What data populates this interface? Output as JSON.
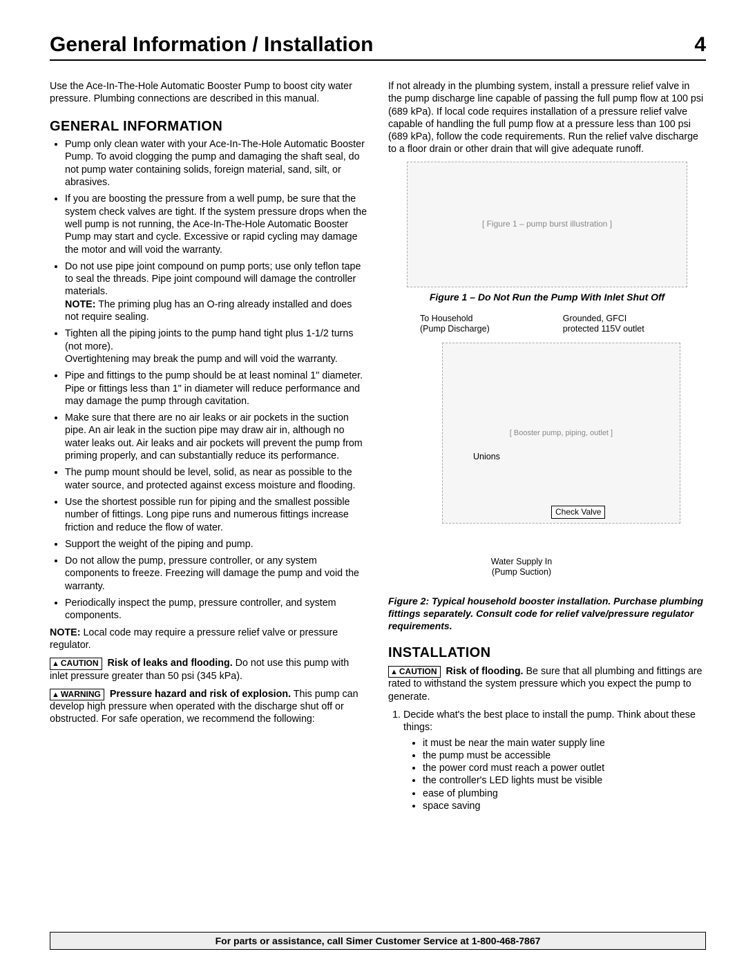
{
  "header": {
    "title": "General Information / Installation",
    "page_number": "4"
  },
  "left": {
    "intro": "Use the Ace-In-The-Hole Automatic Booster Pump to boost city water pressure.  Plumbing connections are described in this manual.",
    "section_title": "GENERAL INFORMATION",
    "bullets": [
      {
        "text": "Pump only clean water with your Ace-In-The-Hole Automatic Booster Pump. To avoid clogging the pump and damaging the shaft seal, do not pump water containing solids, foreign material, sand, silt, or abrasives."
      },
      {
        "text": "If you are boosting the pressure from a well pump, be sure that the system check valves are tight. If the system pressure drops when the well pump is not running, the Ace-In-The-Hole Automatic Booster Pump may start and cycle. Excessive or rapid cycling may damage the motor and will void the warranty."
      },
      {
        "text": "Do not use pipe joint compound on pump ports; use only teflon tape to seal the threads. Pipe joint compound will damage the controller materials.",
        "after_note_label": "NOTE:",
        "after_note_text": " The priming plug has an O-ring already installed and does not require sealing."
      },
      {
        "text": "Tighten all the piping joints to the pump hand tight plus 1-1/2 turns (not more).",
        "after_plain": "Overtightening may break the pump and will void the warranty."
      },
      {
        "text": "Pipe and fittings to the pump should be at least nominal 1\" diameter. Pipe or fittings less than 1\" in diameter will reduce performance and may damage the pump through cavitation."
      },
      {
        "text": "Make sure that there are no air leaks or air pockets in the suction pipe. An air leak in the suction pipe may draw air in, although no water leaks out. Air leaks and air pockets will prevent the pump from priming properly, and can substantially reduce its performance."
      },
      {
        "text": "The pump mount should be level, solid, as near as possible to the water source, and protected against excess moisture and flooding."
      },
      {
        "text": "Use the shortest possible run for piping and the smallest possible number of fittings. Long pipe runs and numerous fittings increase friction and reduce the flow of water."
      },
      {
        "text": "Support the weight of the piping and pump."
      },
      {
        "text": "Do not allow the pump, pressure controller, or any system components to freeze. Freezing will damage the pump and void the warranty."
      },
      {
        "text": "Periodically inspect the pump, pressure controller, and system components."
      }
    ],
    "note2_label": "NOTE:",
    "note2_text": " Local code may require a pressure relief valve or pressure regulator.",
    "caution_label": "CAUTION",
    "caution_bold": "Risk of leaks and flooding.",
    "caution_text": " Do not use this pump with inlet pressure greater than 50 psi (345 kPa).",
    "warning_label": "WARNING",
    "warning_bold": "Pressure hazard and risk of explosion.",
    "warning_text": " This pump can develop high pressure when operated with the discharge shut off or obstructed. For safe operation, we recommend the following:"
  },
  "right": {
    "top_para": "If not already in the plumbing system, install a pressure relief valve in the pump discharge line capable of passing the full pump flow at 100 psi (689 kPa). If local code requires installation of a pressure relief valve capable of handling the full pump flow at a pressure less than 100 psi (689 kPa), follow the code requirements. Run the relief valve discharge to a floor drain or other drain that will give adequate runoff.",
    "fig1_placeholder": "[ Figure 1 – pump burst illustration ]",
    "fig1_caption": "Figure 1 – Do Not Run the Pump With Inlet Shut Off",
    "fig2_labels": {
      "to_household": "To Household\n(Pump Discharge)",
      "gfci": "Grounded, GFCI\nprotected 115V outlet",
      "unions": "Unions",
      "check_valve": "Check Valve",
      "water_in": "Water Supply In\n(Pump Suction)"
    },
    "fig2_placeholder_text": "[ Booster pump, piping, outlet ]",
    "fig2_caption": "Figure 2: Typical household booster installation. Purchase plumbing fittings separately. Consult code for relief valve/pressure regulator requirements.",
    "install_title": "INSTALLATION",
    "install_caution_label": "CAUTION",
    "install_caution_bold": "Risk of flooding.",
    "install_caution_text": " Be sure that all plumbing and fittings are rated to withstand the system pressure which you expect the pump to generate.",
    "install_step1": "Decide what's the best place to install the pump.  Think about these things:",
    "install_subs": [
      "it must be near the main water supply line",
      "the pump must be accessible",
      "the power cord must reach a power outlet",
      "the controller's LED lights must be visible",
      "ease of plumbing",
      "space saving"
    ]
  },
  "footer": "For parts or assistance, call Simer Customer Service at 1-800-468-7867"
}
